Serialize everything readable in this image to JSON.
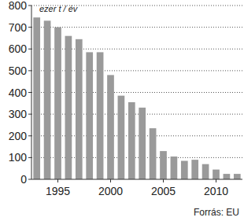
{
  "chart_data": {
    "type": "bar",
    "ylabel": "ezer t / év",
    "source": "Forrás: EU",
    "x": [
      1993,
      1994,
      1995,
      1996,
      1997,
      1998,
      1999,
      2000,
      2001,
      2002,
      2003,
      2004,
      2005,
      2006,
      2007,
      2008,
      2009,
      2010,
      2011,
      2012
    ],
    "values": [
      745,
      730,
      700,
      660,
      645,
      585,
      585,
      480,
      385,
      355,
      330,
      235,
      130,
      105,
      85,
      90,
      70,
      45,
      25,
      25
    ],
    "color": "#9a9a9a",
    "xlim": [
      1992.5,
      2012.5
    ],
    "xticks": [
      1995,
      2000,
      2005,
      2010
    ],
    "ylim": [
      0,
      800
    ],
    "yticks": [
      0,
      100,
      200,
      300,
      400,
      500,
      600,
      700,
      800
    ],
    "grid": true
  }
}
